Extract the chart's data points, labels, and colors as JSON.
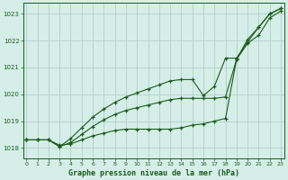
{
  "title": "Graphe pression niveau de la mer (hPa)",
  "x_ticks": [
    0,
    1,
    2,
    3,
    4,
    5,
    6,
    7,
    8,
    9,
    10,
    11,
    12,
    13,
    14,
    15,
    16,
    17,
    18,
    19,
    20,
    21,
    22,
    23
  ],
  "ylim": [
    1017.6,
    1023.4
  ],
  "xlim": [
    -0.3,
    23.3
  ],
  "yticks": [
    1018,
    1019,
    1020,
    1021,
    1022,
    1023
  ],
  "background_color": "#d6eee8",
  "grid_color": "#b0cfc8",
  "line_color1": "#1a5c1a",
  "line_color2": "#1a5c1a",
  "line_color3": "#1a5c1a",
  "series1": [
    1018.3,
    1018.3,
    1018.3,
    1018.1,
    1018.15,
    1018.3,
    1018.45,
    1018.55,
    1018.65,
    1018.7,
    1018.7,
    1018.7,
    1018.7,
    1018.7,
    1018.75,
    1018.85,
    1018.9,
    1019.0,
    1019.1,
    1021.3,
    1021.9,
    1022.2,
    1022.85,
    1023.1
  ],
  "series2": [
    1018.3,
    1018.3,
    1018.3,
    1018.05,
    1018.2,
    1018.5,
    1018.8,
    1019.05,
    1019.25,
    1019.4,
    1019.5,
    1019.6,
    1019.7,
    1019.8,
    1019.85,
    1019.85,
    1019.85,
    1019.85,
    1019.9,
    1021.3,
    1022.05,
    1022.5,
    1023.0,
    1023.2
  ],
  "series3": [
    1018.3,
    1018.3,
    1018.3,
    1018.05,
    1018.35,
    1018.75,
    1019.15,
    1019.45,
    1019.7,
    1019.9,
    1020.05,
    1020.2,
    1020.35,
    1020.5,
    1020.55,
    1020.55,
    1019.95,
    1020.3,
    1021.35,
    1021.35,
    1021.95,
    1022.5,
    1023.0,
    1023.2
  ]
}
